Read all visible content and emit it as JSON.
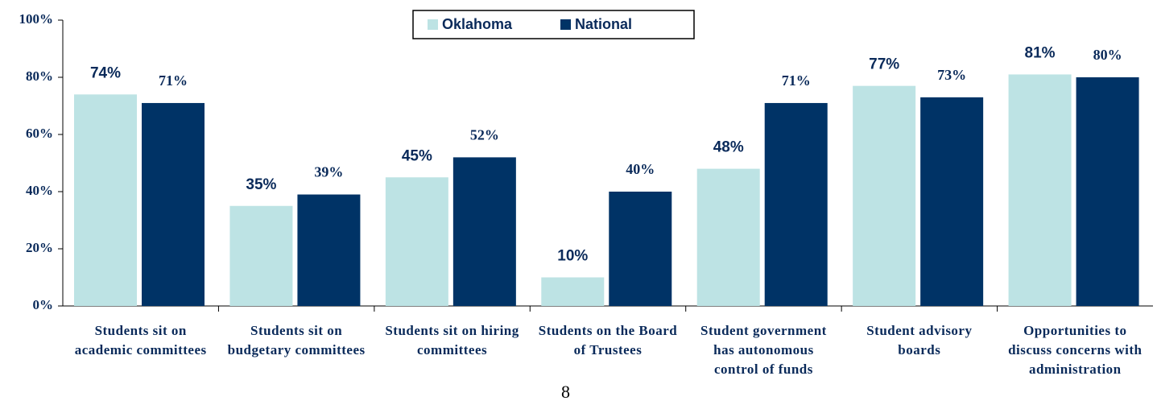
{
  "chart_data": {
    "type": "bar",
    "categories": [
      "Students sit on academic committees",
      "Students sit on budgetary committees",
      "Students sit on hiring committees",
      "Students on the Board of Trustees",
      "Student government has autonomous control of funds",
      "Student advisory boards",
      "Opportunities to discuss concerns with administration"
    ],
    "series": [
      {
        "name": "Oklahoma",
        "color": "#bde3e4",
        "values": [
          74,
          35,
          45,
          10,
          48,
          77,
          81
        ],
        "value_labels": [
          "74%",
          "35%",
          "45%",
          "10%",
          "48%",
          "77%",
          "81%"
        ]
      },
      {
        "name": "National",
        "color": "#003366",
        "values": [
          71,
          39,
          52,
          40,
          71,
          73,
          80
        ],
        "value_labels": [
          "71%",
          "39%",
          "52%",
          "40%",
          "71%",
          "73%",
          "80%"
        ]
      }
    ],
    "ylim": [
      0,
      100
    ],
    "yticks": [
      {
        "value": 0,
        "label": "0%"
      },
      {
        "value": 20,
        "label": "20%"
      },
      {
        "value": 40,
        "label": "40%"
      },
      {
        "value": 60,
        "label": "60%"
      },
      {
        "value": 80,
        "label": "80%"
      },
      {
        "value": 100,
        "label": "100%"
      }
    ],
    "legend": "top"
  },
  "page_number": "8"
}
